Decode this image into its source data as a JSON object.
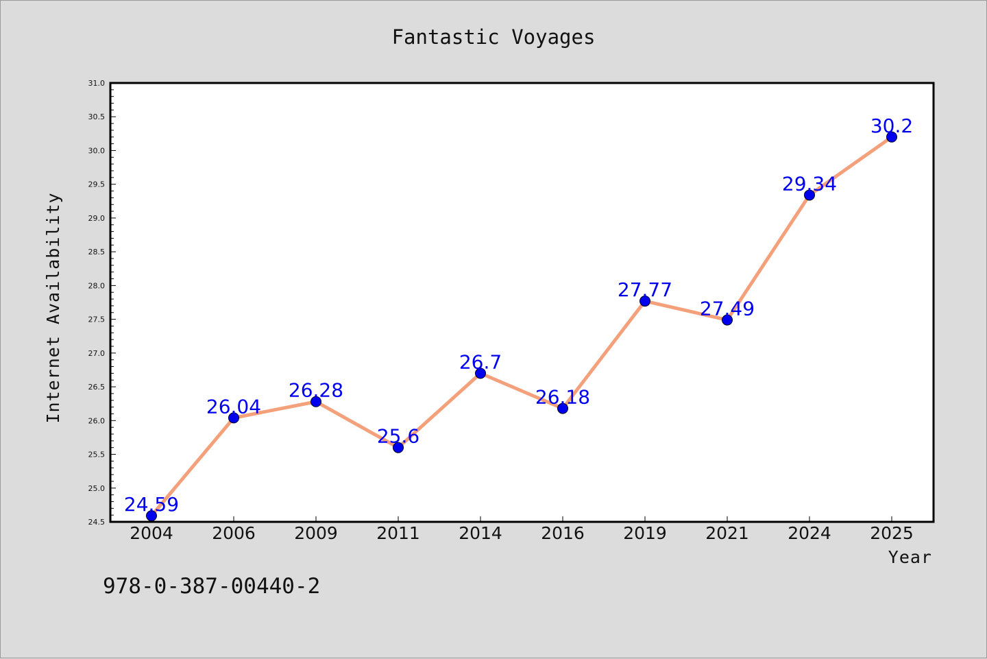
{
  "chart_data": {
    "type": "line",
    "title": "Fantastic Voyages",
    "xlabel": "Year",
    "ylabel": "Internet Availability",
    "categories": [
      "2004",
      "2006",
      "2009",
      "2011",
      "2014",
      "2016",
      "2019",
      "2021",
      "2024",
      "2025"
    ],
    "series": [
      {
        "values": [
          24.59,
          26.04,
          26.28,
          25.6,
          26.7,
          26.18,
          27.77,
          27.49,
          29.34,
          30.2
        ],
        "data_labels": [
          "24.59",
          "26.04",
          "26.28",
          "25.6",
          "26.7",
          "26.18",
          "27.77",
          "27.49",
          "29.34",
          "30.2"
        ]
      }
    ],
    "ylim": [
      24.5,
      31.0
    ],
    "yticks": [
      "24.5",
      "25.0",
      "25.5",
      "26.0",
      "26.5",
      "27.0",
      "27.5",
      "28.0",
      "28.5",
      "29.0",
      "29.5",
      "30.0",
      "30.5",
      "31.0"
    ],
    "grid": false,
    "legend": "none",
    "colors": {
      "line": "#f4a07a",
      "marker": "#0000ee",
      "data_label": "#0000ee",
      "plot_background": "#ffffff",
      "figure_background": "#dcdcdc"
    }
  },
  "annotation": {
    "text": "978-0-387-00440-2"
  }
}
